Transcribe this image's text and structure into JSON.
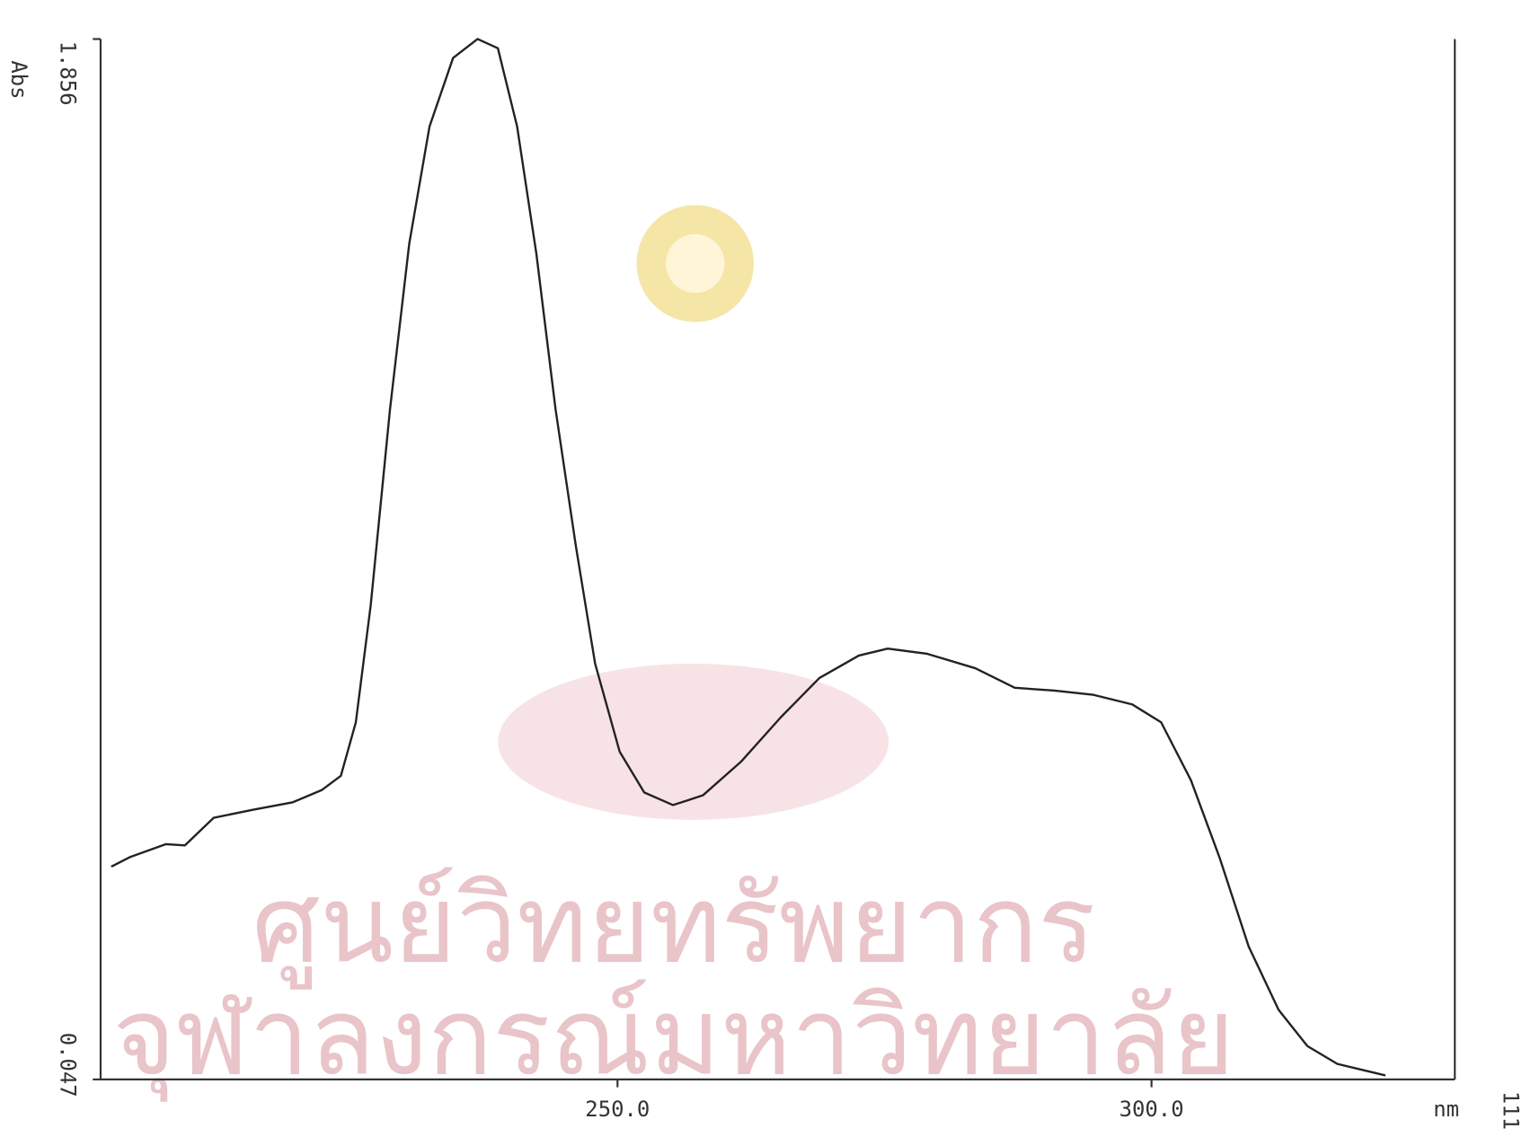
{
  "chart_data": {
    "type": "line",
    "y_label": "Abs",
    "x_label": "nm",
    "page_number": "111",
    "watermark": [
      "ศูนย์วิทยทรัพยากร",
      "จุฬาลงกรณ์มหาวิทยาลัย"
    ],
    "xlim": [
      201.6,
      328.4
    ],
    "ylim": [
      0.047,
      1.856
    ],
    "xticks": [
      {
        "value": 250,
        "label": "250.0"
      },
      {
        "value": 300,
        "label": "300.0"
      }
    ],
    "yticks": [
      {
        "value": 0.047,
        "label": "0.047"
      },
      {
        "value": 1.856,
        "label": "1.856"
      }
    ],
    "grid": false,
    "series": [
      {
        "color": "#222222",
        "x": [
          202.6,
          204.4,
          207.7,
          209.5,
          212.2,
          215.9,
          219.6,
          222.3,
          224.1,
          225.5,
          226.9,
          228.7,
          230.5,
          232.4,
          234.6,
          236.9,
          238.8,
          240.6,
          242.4,
          244.2,
          246.1,
          247.9,
          250.2,
          252.5,
          255.2,
          258.0,
          261.6,
          265.3,
          268.9,
          272.6,
          275.3,
          279.0,
          283.5,
          287.2,
          290.9,
          294.5,
          298.2,
          300.9,
          303.7,
          306.4,
          309.1,
          311.9,
          314.6,
          317.4,
          321.9
        ],
        "values": [
          0.417,
          0.434,
          0.456,
          0.454,
          0.502,
          0.516,
          0.529,
          0.55,
          0.575,
          0.668,
          0.872,
          1.212,
          1.5,
          1.704,
          1.823,
          1.856,
          1.84,
          1.704,
          1.483,
          1.212,
          0.974,
          0.77,
          0.617,
          0.546,
          0.524,
          0.541,
          0.6,
          0.677,
          0.745,
          0.784,
          0.796,
          0.787,
          0.762,
          0.728,
          0.723,
          0.716,
          0.699,
          0.668,
          0.567,
          0.431,
          0.278,
          0.168,
          0.105,
          0.074,
          0.054
        ]
      }
    ]
  }
}
